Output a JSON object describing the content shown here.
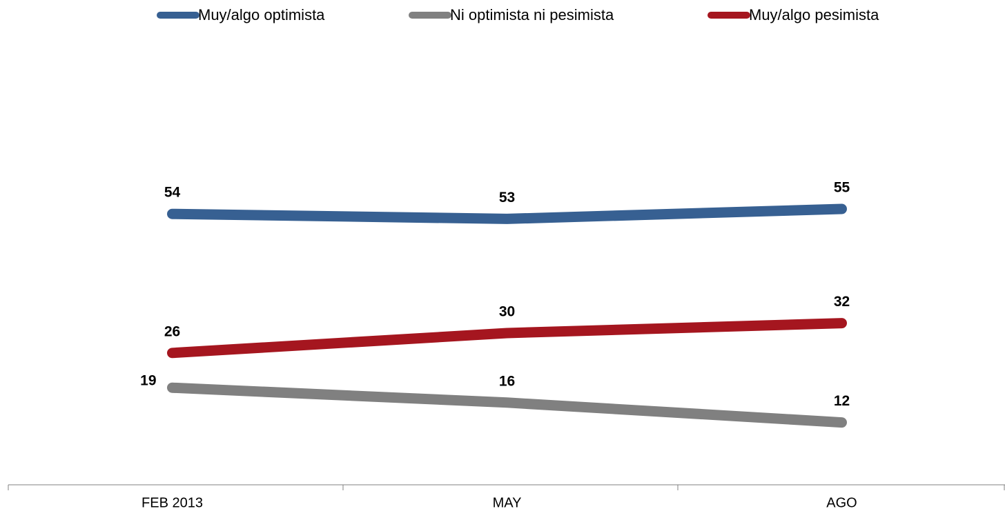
{
  "chart_data": {
    "type": "line",
    "categories": [
      "FEB 2013",
      "MAY",
      "AGO"
    ],
    "series": [
      {
        "name": "Muy/algo optimista",
        "color": "#376092",
        "values": [
          54,
          53,
          55
        ]
      },
      {
        "name": "Ni optimista ni pesimista",
        "color": "#808080",
        "values": [
          19,
          16,
          12
        ]
      },
      {
        "name": "Muy/algo pesimista",
        "color": "#a5161f",
        "values": [
          26,
          30,
          32
        ]
      }
    ],
    "ylim": [
      0,
      80
    ],
    "legend": "top"
  }
}
